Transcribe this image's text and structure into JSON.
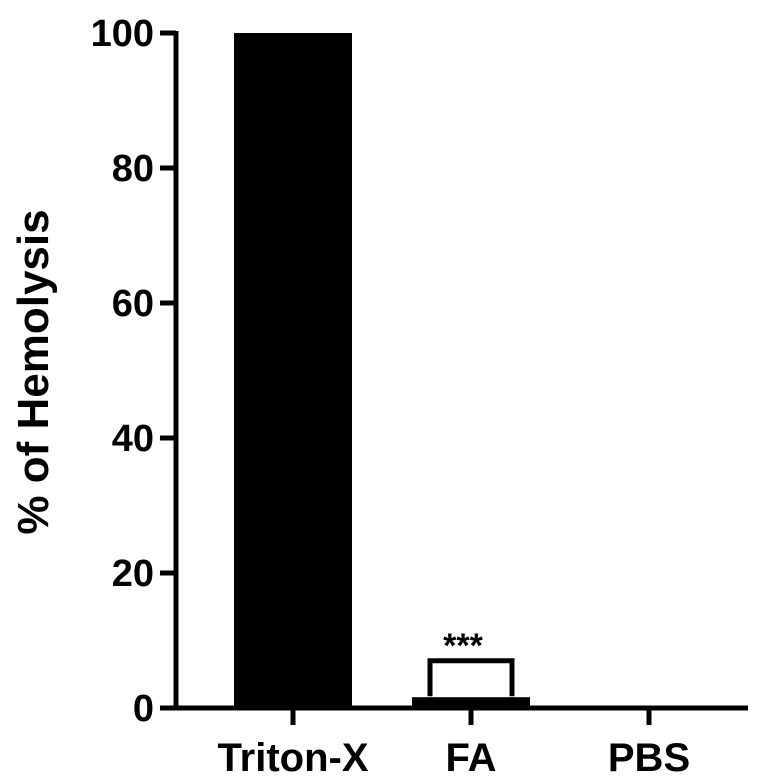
{
  "chart_data": {
    "type": "bar",
    "title": "",
    "xlabel": "",
    "ylabel": "% of Hemolysis",
    "categories": [
      "Triton-X",
      "FA",
      "PBS"
    ],
    "values": [
      100,
      1.6,
      0
    ],
    "ylim": [
      0,
      100
    ],
    "yticks": [
      "0",
      "20",
      "40",
      "60",
      "80",
      "100"
    ],
    "ytick_values": [
      0,
      20,
      40,
      60,
      80,
      100
    ],
    "grid": false,
    "legend": "none",
    "bar_color": "#000000",
    "annotation": {
      "text": "***",
      "category": "FA",
      "bracket_top_value": 7
    }
  }
}
